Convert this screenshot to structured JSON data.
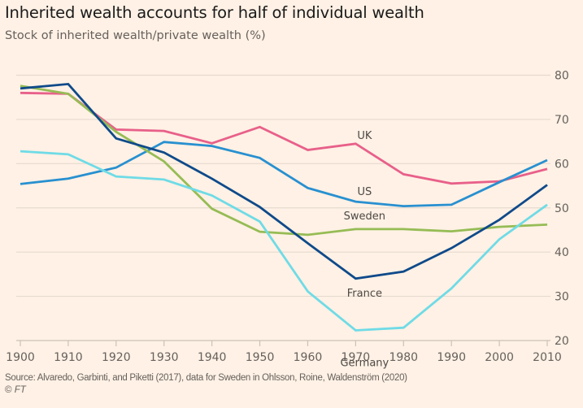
{
  "chart_data": {
    "type": "line",
    "title": "Inherited wealth accounts for half of individual wealth",
    "subtitle": "Stock of inherited wealth/private wealth (%)",
    "xlabel": "",
    "ylabel": "",
    "x": [
      1900,
      1910,
      1920,
      1930,
      1940,
      1950,
      1960,
      1970,
      1980,
      1990,
      2000,
      2010
    ],
    "xlim": [
      1900,
      2010
    ],
    "ylim": [
      20,
      80
    ],
    "xticks": [
      "1900",
      "1910",
      "1920",
      "1930",
      "1940",
      "1950",
      "1960",
      "1970",
      "1980",
      "1990",
      "2000",
      "2010"
    ],
    "yticks": [
      "80",
      "70",
      "60",
      "50",
      "40",
      "30",
      "20"
    ],
    "ytick_values": [
      80,
      70,
      60,
      50,
      40,
      30,
      20
    ],
    "grid": true,
    "y_axis_position": "right",
    "legend": "inline-labels",
    "series": [
      {
        "name": "UK",
        "label": "UK",
        "color": "#e8608a",
        "values": [
          76.0,
          75.8,
          67.7,
          67.4,
          64.6,
          68.3,
          63.1,
          64.5,
          57.6,
          55.5,
          56.0,
          58.8
        ]
      },
      {
        "name": "US",
        "label": "US",
        "color": "#2890d0",
        "values": [
          55.4,
          56.6,
          59.1,
          64.9,
          64.0,
          61.3,
          54.5,
          51.4,
          50.4,
          50.7,
          55.8,
          60.8
        ]
      },
      {
        "name": "Sweden",
        "label": "Sweden",
        "color": "#96bc55",
        "values": [
          77.6,
          75.8,
          67.2,
          60.5,
          49.8,
          44.6,
          43.9,
          45.2,
          45.2,
          44.7,
          45.7,
          46.2
        ]
      },
      {
        "name": "France",
        "label": "France",
        "color": "#0f4a8a",
        "values": [
          77.0,
          78.0,
          65.7,
          62.5,
          56.6,
          50.2,
          42.0,
          34.0,
          35.6,
          40.9,
          47.3,
          55.2
        ]
      },
      {
        "name": "Germany",
        "label": "Germany",
        "color": "#6fdbe6",
        "values": [
          62.8,
          62.1,
          57.1,
          56.4,
          52.8,
          46.9,
          31.1,
          22.3,
          22.9,
          31.8,
          42.9,
          50.7
        ]
      }
    ]
  },
  "footer": {
    "source": "Source: Alvaredo, Garbinti, and Piketti (2017), data for Sweden in Ohlsson, Roine, Waldenström (2020)",
    "copyright_symbol": "©",
    "copyright_brand": "FT"
  }
}
